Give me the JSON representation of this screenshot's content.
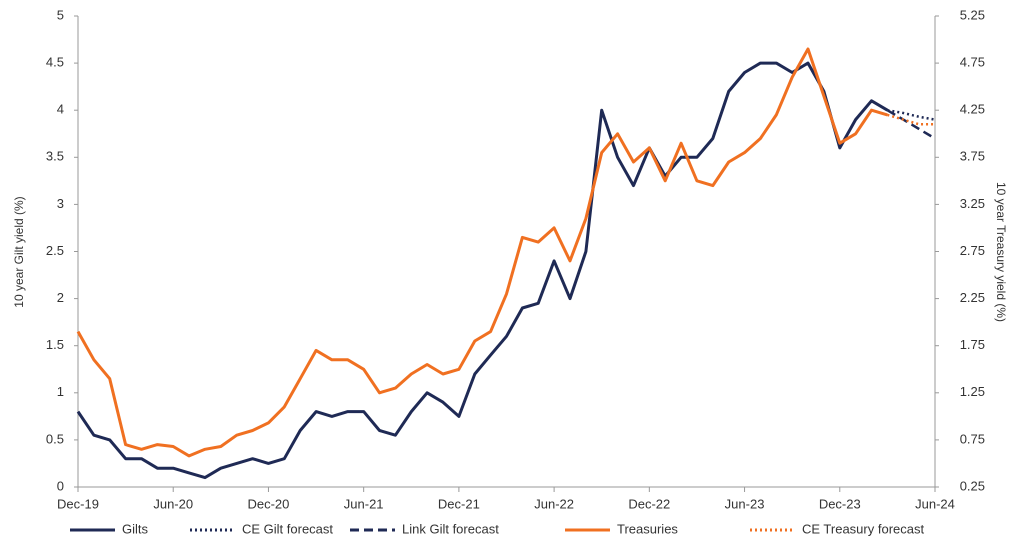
{
  "chart_data": {
    "type": "line",
    "y_label": "10 year Gilt yield (%)",
    "y2_label": "10 year Treasury yield (%)",
    "categories": [
      "Dec-19",
      null,
      null,
      null,
      null,
      null,
      "Jun-20",
      null,
      null,
      null,
      null,
      null,
      "Dec-20",
      null,
      null,
      null,
      null,
      null,
      "Jun-21",
      null,
      null,
      null,
      null,
      null,
      "Dec-21",
      null,
      null,
      null,
      null,
      null,
      "Jun-22",
      null,
      null,
      null,
      null,
      null,
      "Dec-22",
      null,
      null,
      null,
      null,
      null,
      "Jun-23",
      null,
      null,
      null,
      null,
      null,
      "Dec-23",
      null,
      null,
      null,
      null,
      null,
      "Jun-24"
    ],
    "ylim": [
      0,
      5
    ],
    "yticks": [
      0,
      0.5,
      1,
      1.5,
      2,
      2.5,
      3,
      3.5,
      4,
      4.5,
      5
    ],
    "y2lim": [
      0.25,
      5.25
    ],
    "y2ticks": [
      0.25,
      0.75,
      1.25,
      1.75,
      2.25,
      2.75,
      3.25,
      3.75,
      4.25,
      4.75,
      5.25
    ],
    "series": [
      {
        "name": "Gilts",
        "color": "#1f2a55",
        "dash": "solid",
        "axis": "y",
        "values": [
          0.8,
          0.55,
          0.5,
          0.3,
          0.3,
          0.2,
          0.2,
          0.15,
          0.1,
          0.2,
          0.25,
          0.3,
          0.25,
          0.3,
          0.6,
          0.8,
          0.75,
          0.8,
          0.8,
          0.6,
          0.55,
          0.8,
          1.0,
          0.9,
          0.75,
          1.2,
          1.4,
          1.6,
          1.9,
          1.95,
          2.4,
          2.0,
          2.5,
          4.0,
          3.5,
          3.2,
          3.6,
          3.3,
          3.5,
          3.5,
          3.7,
          4.2,
          4.4,
          4.5,
          4.5,
          4.4,
          4.5,
          4.2,
          3.6,
          3.9,
          4.1,
          4.0,
          null,
          null,
          null
        ]
      },
      {
        "name": "CE Gilt forecast",
        "color": "#1f2a55",
        "dash": "dot",
        "axis": "y",
        "values": [
          null,
          null,
          null,
          null,
          null,
          null,
          null,
          null,
          null,
          null,
          null,
          null,
          null,
          null,
          null,
          null,
          null,
          null,
          null,
          null,
          null,
          null,
          null,
          null,
          null,
          null,
          null,
          null,
          null,
          null,
          null,
          null,
          null,
          null,
          null,
          null,
          null,
          null,
          null,
          null,
          null,
          null,
          null,
          null,
          null,
          null,
          null,
          null,
          null,
          null,
          null,
          4.0,
          3.97,
          3.93,
          3.9
        ]
      },
      {
        "name": "Link Gilt forecast",
        "color": "#1f2a55",
        "dash": "dash",
        "axis": "y",
        "values": [
          null,
          null,
          null,
          null,
          null,
          null,
          null,
          null,
          null,
          null,
          null,
          null,
          null,
          null,
          null,
          null,
          null,
          null,
          null,
          null,
          null,
          null,
          null,
          null,
          null,
          null,
          null,
          null,
          null,
          null,
          null,
          null,
          null,
          null,
          null,
          null,
          null,
          null,
          null,
          null,
          null,
          null,
          null,
          null,
          null,
          null,
          null,
          null,
          null,
          null,
          null,
          4.0,
          3.9,
          3.8,
          3.7
        ]
      },
      {
        "name": "Treasuries",
        "color": "#f07021",
        "dash": "solid",
        "axis": "y2",
        "values": [
          1.9,
          1.6,
          1.4,
          0.7,
          0.65,
          0.7,
          0.68,
          0.58,
          0.65,
          0.68,
          0.8,
          0.85,
          0.93,
          1.1,
          1.4,
          1.7,
          1.6,
          1.6,
          1.5,
          1.25,
          1.3,
          1.45,
          1.55,
          1.45,
          1.5,
          1.8,
          1.9,
          2.3,
          2.9,
          2.85,
          3.0,
          2.65,
          3.1,
          3.8,
          4.0,
          3.7,
          3.85,
          3.5,
          3.9,
          3.5,
          3.45,
          3.7,
          3.8,
          3.95,
          4.2,
          4.6,
          4.9,
          4.4,
          3.9,
          4.0,
          4.25,
          4.2,
          null,
          null,
          null
        ]
      },
      {
        "name": "CE Treasury forecast",
        "color": "#f07021",
        "dash": "dot",
        "axis": "y2",
        "values": [
          null,
          null,
          null,
          null,
          null,
          null,
          null,
          null,
          null,
          null,
          null,
          null,
          null,
          null,
          null,
          null,
          null,
          null,
          null,
          null,
          null,
          null,
          null,
          null,
          null,
          null,
          null,
          null,
          null,
          null,
          null,
          null,
          null,
          null,
          null,
          null,
          null,
          null,
          null,
          null,
          null,
          null,
          null,
          null,
          null,
          null,
          null,
          null,
          null,
          null,
          null,
          4.2,
          4.15,
          4.1,
          4.1
        ]
      }
    ]
  }
}
